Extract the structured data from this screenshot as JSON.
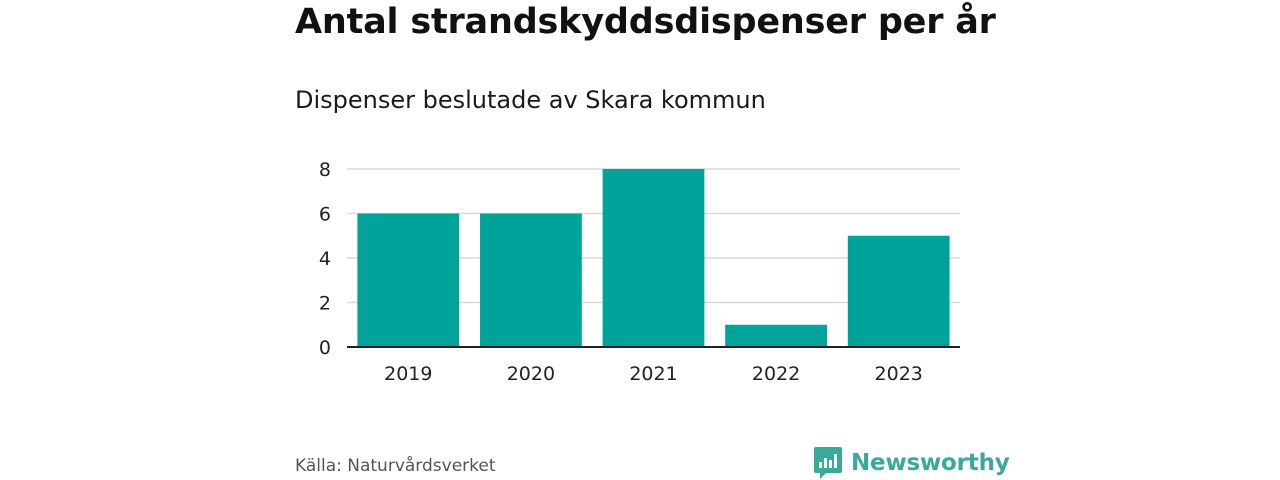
{
  "colors": {
    "bar": "#00a39a",
    "grid": "#d9d9d9",
    "axis": "#222222",
    "brand": "#3aa99a"
  },
  "source": "Källa: Naturvårdsverket",
  "brand": {
    "name": "Newsworthy",
    "icon": "newsworthy-logo-icon"
  },
  "chart_data": {
    "type": "bar",
    "title": "Antal strandskyddsdispenser per år",
    "subtitle": "Dispenser beslutade av Skara kommun",
    "xlabel": "",
    "ylabel": "",
    "categories": [
      "2019",
      "2020",
      "2021",
      "2022",
      "2023"
    ],
    "values": [
      6,
      6,
      8,
      1,
      5
    ],
    "ylim": [
      0,
      8
    ],
    "yticks": [
      0,
      2,
      4,
      6,
      8
    ],
    "grid": true,
    "legend": "none"
  }
}
